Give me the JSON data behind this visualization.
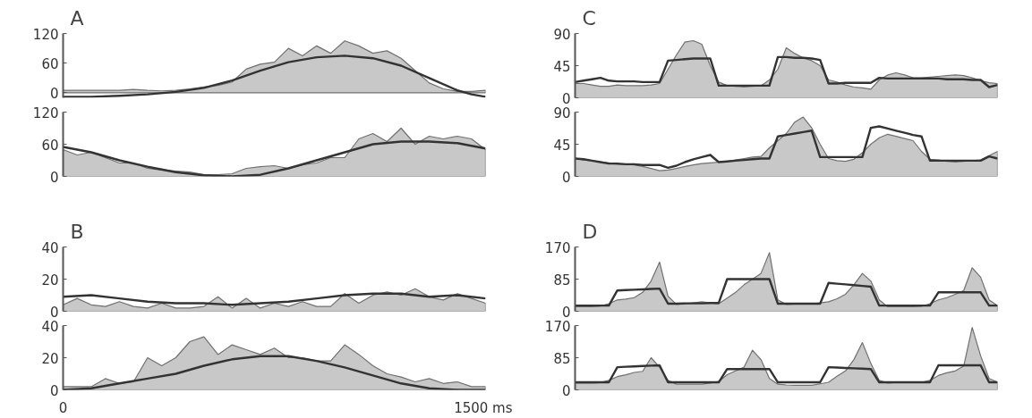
{
  "chart_data": [
    {
      "type": "area",
      "title": "A",
      "xlim": [
        0,
        1500
      ],
      "ylim": [
        -10,
        120
      ],
      "yticks": [
        0,
        60,
        120
      ],
      "tick_labels": "y",
      "series": [
        {
          "color": "#c8c8c8",
          "x": [
            0,
            50,
            100,
            150,
            200,
            250,
            300,
            350,
            400,
            450,
            500,
            550,
            600,
            650,
            700,
            750,
            800,
            850,
            900,
            950,
            1000,
            1050,
            1100,
            1150,
            1200,
            1250,
            1300,
            1350,
            1400,
            1450,
            1500
          ],
          "values": [
            5,
            5,
            5,
            5,
            5,
            7,
            5,
            4,
            5,
            8,
            12,
            15,
            22,
            48,
            58,
            62,
            90,
            75,
            95,
            80,
            105,
            95,
            80,
            85,
            70,
            45,
            20,
            8,
            3,
            3,
            5
          ]
        },
        {
          "type": "line",
          "color": "#333333",
          "x": [
            0,
            100,
            200,
            300,
            400,
            500,
            600,
            700,
            800,
            900,
            1000,
            1100,
            1200,
            1300,
            1400,
            1450,
            1500
          ],
          "values": [
            -8,
            -8,
            -6,
            -3,
            2,
            10,
            25,
            45,
            62,
            72,
            75,
            70,
            55,
            30,
            5,
            -3,
            -8
          ]
        }
      ]
    },
    {
      "type": "area",
      "title": "C",
      "categories": [
        null,
        null,
        null,
        null,
        null,
        null,
        null,
        null,
        null,
        null,
        null,
        null,
        null,
        null,
        null,
        null,
        null,
        null,
        null,
        null,
        null,
        null,
        null,
        null,
        null,
        null,
        null,
        null,
        null,
        null,
        null,
        null,
        null,
        null,
        null,
        null,
        null,
        null,
        null,
        null,
        null,
        null,
        null,
        null,
        null,
        null,
        null,
        null,
        null,
        null,
        null
      ],
      "ylim": [
        0,
        90
      ],
      "yticks": [
        0,
        45,
        90
      ],
      "tick_labels": "y",
      "series": [
        {
          "color": "#c8c8c8",
          "values": [
            20,
            20,
            18,
            16,
            16,
            18,
            17,
            17,
            17,
            18,
            20,
            40,
            60,
            78,
            80,
            75,
            45,
            22,
            17,
            16,
            15,
            16,
            17,
            25,
            40,
            70,
            62,
            56,
            52,
            45,
            25,
            22,
            18,
            15,
            14,
            12,
            25,
            32,
            35,
            32,
            28,
            28,
            29,
            30,
            31,
            32,
            31,
            28,
            24,
            21,
            20
          ]
        },
        {
          "type": "line",
          "color": "#333333",
          "values": [
            22,
            24,
            26,
            28,
            24,
            23,
            23,
            23,
            22,
            22,
            22,
            52,
            53,
            54,
            55,
            55,
            55,
            17,
            17,
            17,
            17,
            17,
            17,
            17,
            57,
            57,
            56,
            56,
            55,
            53,
            20,
            20,
            21,
            21,
            21,
            21,
            28,
            27,
            27,
            27,
            27,
            27,
            27,
            27,
            26,
            26,
            26,
            25,
            25,
            15,
            18
          ]
        }
      ]
    },
    {
      "type": "area",
      "xlim": [
        0,
        1500
      ],
      "ylim": [
        0,
        120
      ],
      "yticks": [
        0,
        60,
        120
      ],
      "tick_labels": "y",
      "series": [
        {
          "color": "#c8c8c8",
          "x": [
            0,
            50,
            100,
            150,
            200,
            250,
            300,
            350,
            400,
            450,
            500,
            550,
            600,
            650,
            700,
            750,
            800,
            850,
            900,
            950,
            1000,
            1050,
            1100,
            1150,
            1200,
            1250,
            1300,
            1350,
            1400,
            1450,
            1500
          ],
          "values": [
            50,
            40,
            45,
            35,
            25,
            25,
            15,
            12,
            10,
            8,
            3,
            3,
            5,
            15,
            18,
            20,
            15,
            22,
            25,
            35,
            35,
            70,
            80,
            65,
            90,
            60,
            75,
            70,
            75,
            70,
            50
          ]
        },
        {
          "type": "line",
          "color": "#333333",
          "x": [
            0,
            100,
            200,
            300,
            400,
            500,
            600,
            700,
            800,
            900,
            1000,
            1100,
            1200,
            1300,
            1400,
            1500
          ],
          "values": [
            55,
            45,
            30,
            18,
            8,
            2,
            0,
            3,
            15,
            30,
            45,
            60,
            65,
            65,
            62,
            52
          ]
        }
      ]
    },
    {
      "type": "area",
      "categories": [
        null,
        null,
        null,
        null,
        null,
        null,
        null,
        null,
        null,
        null,
        null,
        null,
        null,
        null,
        null,
        null,
        null,
        null,
        null,
        null,
        null,
        null,
        null,
        null,
        null,
        null,
        null,
        null,
        null,
        null,
        null,
        null,
        null,
        null,
        null,
        null,
        null,
        null,
        null,
        null,
        null,
        null,
        null,
        null,
        null,
        null,
        null,
        null,
        null,
        null,
        null
      ],
      "ylim": [
        0,
        90
      ],
      "yticks": [
        0,
        45,
        90
      ],
      "tick_labels": "y",
      "series": [
        {
          "color": "#c8c8c8",
          "values": [
            25,
            23,
            22,
            20,
            19,
            17,
            17,
            16,
            14,
            11,
            8,
            9,
            11,
            14,
            16,
            18,
            19,
            20,
            21,
            23,
            25,
            27,
            28,
            40,
            50,
            60,
            76,
            83,
            68,
            45,
            25,
            22,
            21,
            24,
            33,
            45,
            54,
            59,
            56,
            53,
            50,
            35,
            24,
            23,
            21,
            20,
            21,
            22,
            23,
            29,
            35
          ]
        },
        {
          "type": "line",
          "color": "#333333",
          "values": [
            25,
            24,
            22,
            20,
            18,
            18,
            17,
            17,
            16,
            16,
            16,
            12,
            15,
            20,
            24,
            27,
            30,
            20,
            21,
            22,
            23,
            24,
            25,
            25,
            56,
            58,
            60,
            62,
            64,
            27,
            27,
            27,
            27,
            27,
            27,
            68,
            70,
            67,
            64,
            61,
            58,
            56,
            22,
            22,
            22,
            22,
            22,
            22,
            22,
            28,
            25
          ]
        }
      ]
    },
    {
      "type": "area",
      "title": "B",
      "xlim": [
        0,
        1500
      ],
      "ylim": [
        0,
        40
      ],
      "yticks": [
        0,
        20,
        40
      ],
      "tick_labels": "y",
      "series": [
        {
          "color": "#c8c8c8",
          "x": [
            0,
            50,
            100,
            150,
            200,
            250,
            300,
            350,
            400,
            450,
            500,
            550,
            600,
            650,
            700,
            750,
            800,
            850,
            900,
            950,
            1000,
            1050,
            1100,
            1150,
            1200,
            1250,
            1300,
            1350,
            1400,
            1450,
            1500
          ],
          "values": [
            4,
            8,
            4,
            3,
            6,
            3,
            2,
            5,
            2,
            2,
            3,
            9,
            2,
            8,
            2,
            5,
            3,
            6,
            3,
            3,
            11,
            5,
            10,
            12,
            10,
            14,
            9,
            7,
            11,
            8,
            5
          ]
        },
        {
          "type": "line",
          "color": "#333333",
          "x": [
            0,
            100,
            200,
            300,
            400,
            500,
            600,
            700,
            800,
            900,
            1000,
            1100,
            1200,
            1300,
            1400,
            1500
          ],
          "values": [
            9,
            10,
            8,
            6,
            5,
            5,
            4,
            5,
            6,
            8,
            10,
            11,
            11,
            9,
            10,
            8
          ]
        }
      ]
    },
    {
      "type": "area",
      "title": "D",
      "categories": [
        null,
        null,
        null,
        null,
        null,
        null,
        null,
        null,
        null,
        null,
        null,
        null,
        null,
        null,
        null,
        null,
        null,
        null,
        null,
        null,
        null,
        null,
        null,
        null,
        null,
        null,
        null,
        null,
        null,
        null,
        null,
        null,
        null,
        null,
        null,
        null,
        null,
        null,
        null,
        null,
        null,
        null,
        null,
        null,
        null,
        null,
        null,
        null,
        null,
        null,
        null
      ],
      "ylim": [
        0,
        170
      ],
      "yticks": [
        0,
        85,
        170
      ],
      "tick_labels": "y",
      "series": [
        {
          "color": "#c8c8c8",
          "values": [
            12,
            12,
            12,
            14,
            20,
            30,
            32,
            36,
            50,
            80,
            130,
            40,
            18,
            19,
            22,
            25,
            22,
            20,
            35,
            50,
            70,
            85,
            100,
            155,
            30,
            18,
            19,
            20,
            20,
            22,
            25,
            33,
            45,
            70,
            100,
            80,
            30,
            12,
            12,
            12,
            12,
            13,
            20,
            30,
            36,
            45,
            55,
            115,
            90,
            30,
            15
          ]
        },
        {
          "type": "line",
          "color": "#333333",
          "values": [
            15,
            15,
            15,
            15,
            15,
            55,
            56,
            57,
            58,
            59,
            60,
            20,
            20,
            21,
            21,
            21,
            22,
            22,
            85,
            85,
            85,
            85,
            85,
            85,
            20,
            20,
            20,
            20,
            20,
            20,
            75,
            73,
            71,
            69,
            67,
            65,
            15,
            15,
            15,
            15,
            15,
            15,
            15,
            50,
            50,
            50,
            50,
            50,
            50,
            15,
            15
          ]
        }
      ]
    },
    {
      "type": "area",
      "xlim": [
        0,
        1500
      ],
      "ylim": [
        0,
        40
      ],
      "yticks": [
        0,
        20,
        40
      ],
      "xticks": [
        0,
        {
          "value": 1500,
          "label": "1500 ms"
        }
      ],
      "series": [
        {
          "color": "#c8c8c8",
          "x": [
            0,
            50,
            100,
            150,
            200,
            250,
            300,
            350,
            400,
            450,
            500,
            550,
            600,
            650,
            700,
            750,
            800,
            850,
            900,
            950,
            1000,
            1050,
            1100,
            1150,
            1200,
            1250,
            1300,
            1350,
            1400,
            1450,
            1500
          ],
          "values": [
            2,
            2,
            2,
            7,
            4,
            5,
            20,
            15,
            20,
            30,
            33,
            22,
            28,
            25,
            22,
            26,
            20,
            20,
            18,
            18,
            28,
            22,
            15,
            10,
            8,
            5,
            7,
            4,
            5,
            2,
            2
          ]
        },
        {
          "type": "line",
          "color": "#333333",
          "x": [
            0,
            100,
            200,
            300,
            400,
            500,
            600,
            700,
            800,
            900,
            1000,
            1100,
            1200,
            1300,
            1400,
            1500
          ],
          "values": [
            0,
            1,
            4,
            7,
            10,
            15,
            19,
            21,
            21,
            18,
            14,
            9,
            4,
            1,
            0,
            0
          ]
        }
      ]
    },
    {
      "type": "area",
      "categories": [
        null,
        null,
        null,
        null,
        null,
        null,
        null,
        null,
        null,
        null,
        null,
        null,
        null,
        null,
        null,
        null,
        null,
        null,
        null,
        null,
        null,
        null,
        null,
        null,
        null,
        null,
        null,
        null,
        null,
        null,
        null,
        null,
        null,
        null,
        null,
        null,
        null,
        null,
        null,
        null,
        null,
        null,
        null,
        null,
        null,
        null,
        null,
        null,
        null,
        null,
        null
      ],
      "ylim": [
        0,
        170
      ],
      "yticks": [
        0,
        85,
        170
      ],
      "tick_labels": "y",
      "series": [
        {
          "color": "#c8c8c8",
          "values": [
            18,
            18,
            18,
            19,
            25,
            35,
            40,
            46,
            49,
            85,
            60,
            25,
            15,
            15,
            15,
            15,
            18,
            22,
            40,
            50,
            60,
            105,
            80,
            30,
            15,
            13,
            12,
            12,
            12,
            16,
            20,
            36,
            50,
            80,
            125,
            70,
            25,
            18,
            20,
            20,
            20,
            20,
            25,
            38,
            45,
            50,
            63,
            165,
            90,
            30,
            20
          ]
        },
        {
          "type": "line",
          "color": "#333333",
          "values": [
            20,
            20,
            20,
            20,
            20,
            60,
            61,
            62,
            63,
            64,
            65,
            20,
            20,
            20,
            20,
            20,
            20,
            20,
            55,
            55,
            55,
            55,
            55,
            55,
            20,
            20,
            20,
            20,
            20,
            20,
            60,
            59,
            58,
            57,
            56,
            55,
            20,
            20,
            20,
            20,
            20,
            20,
            20,
            65,
            65,
            65,
            65,
            65,
            65,
            20,
            20
          ]
        }
      ]
    }
  ]
}
